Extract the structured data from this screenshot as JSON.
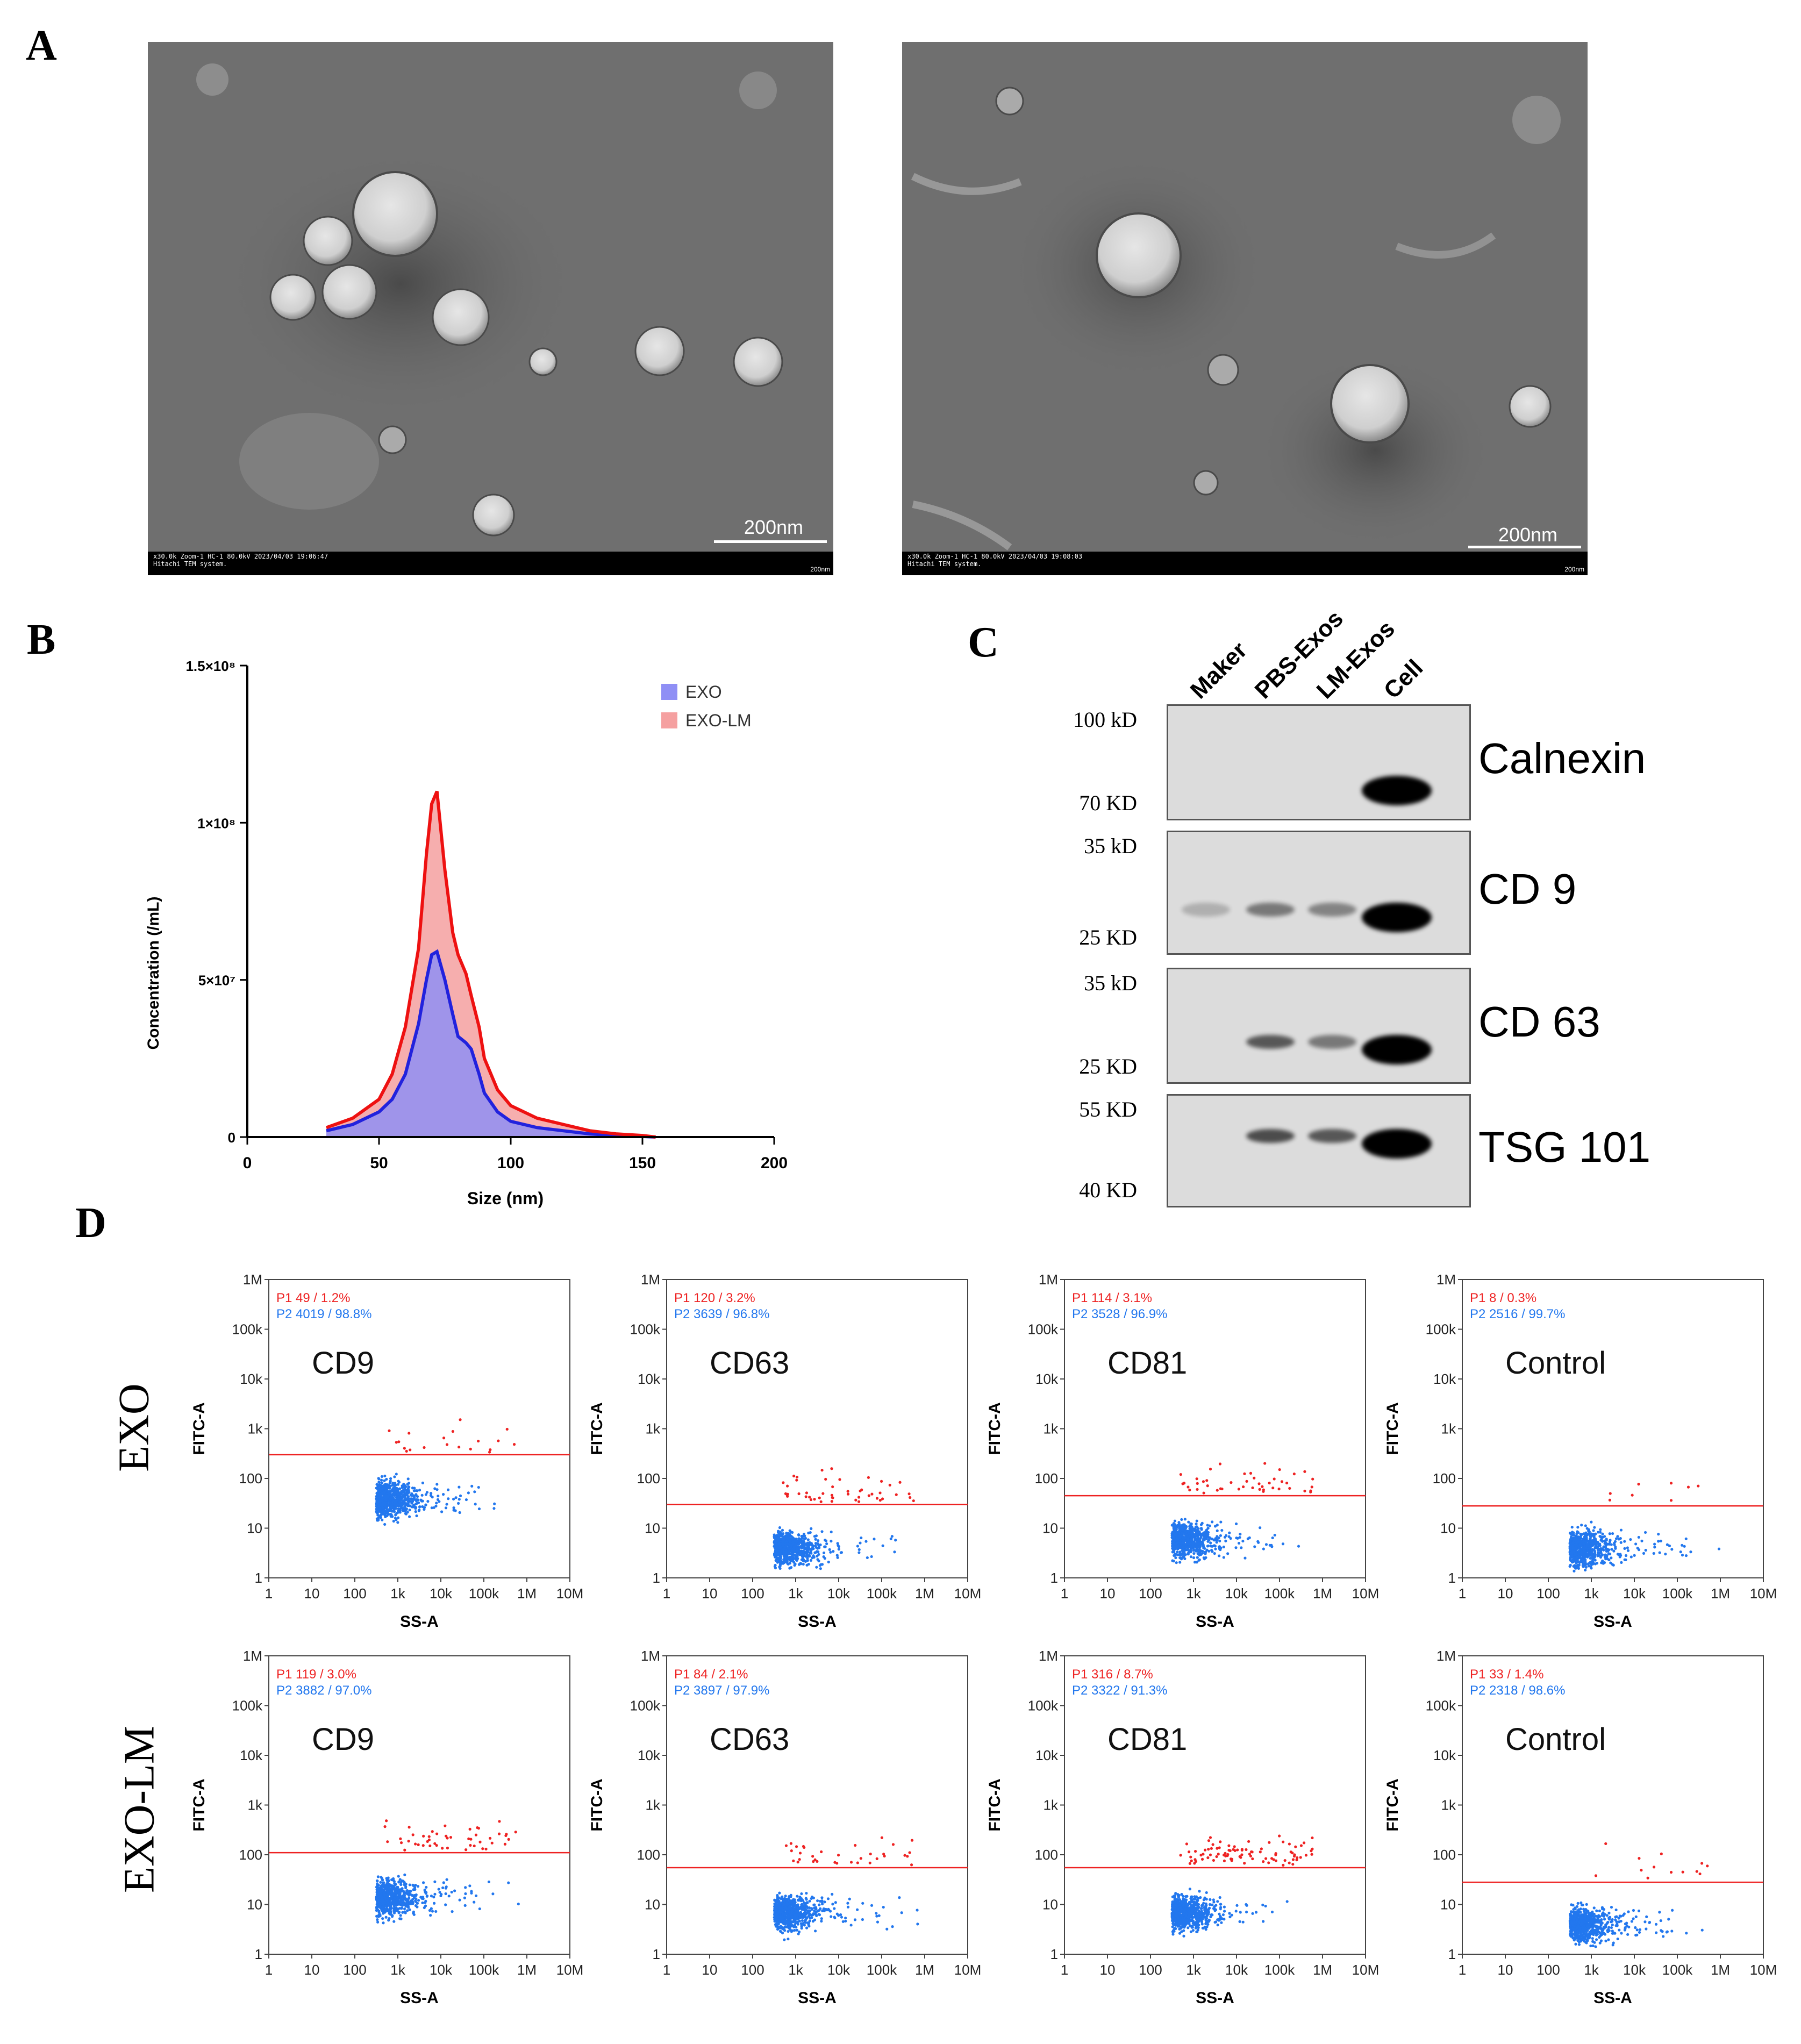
{
  "panel_labels": {
    "a": "A",
    "b": "B",
    "c": "C",
    "d": "D"
  },
  "tem": {
    "images": [
      {
        "scale_label": "200nm",
        "meta_line1": "x30.0k Zoom-1 HC-1 80.0kV 2023/04/03 19:06:47",
        "meta_line2": "Hitachi TEM system.",
        "scale_text": "200nm"
      },
      {
        "scale_label": "200nm",
        "meta_line1": "x30.0k Zoom-1 HC-1 80.0kV 2023/04/03 19:08:03",
        "meta_line2": "Hitachi TEM system.",
        "scale_text": "200nm"
      }
    ]
  },
  "chart_data": {
    "type": "area",
    "x": [
      30,
      40,
      50,
      55,
      60,
      65,
      68,
      70,
      72,
      75,
      78,
      80,
      83,
      85,
      88,
      90,
      95,
      100,
      110,
      120,
      130,
      140,
      150,
      155
    ],
    "series": [
      {
        "name": "EXO",
        "values": [
          2000000.0,
          4000000.0,
          8000000.0,
          12000000.0,
          20000000.0,
          36000000.0,
          50000000.0,
          58000000.0,
          59000000.0,
          50000000.0,
          39000000.0,
          32000000.0,
          30000000.0,
          28000000.0,
          20000000.0,
          14000000.0,
          8000000.0,
          5000000.0,
          3000000.0,
          2000000.0,
          1000000.0,
          500000.0,
          200000.0,
          0
        ]
      },
      {
        "name": "EXO-LM",
        "values": [
          3000000.0,
          6000000.0,
          12000000.0,
          20000000.0,
          35000000.0,
          60000000.0,
          90000000.0,
          106000000.0,
          110000000.0,
          85000000.0,
          65000000.0,
          58000000.0,
          52000000.0,
          45000000.0,
          35000000.0,
          25000000.0,
          15000000.0,
          10000000.0,
          6000000.0,
          4000000.0,
          2000000.0,
          1000000.0,
          500000.0,
          0
        ]
      }
    ],
    "xlabel": "Size (nm)",
    "ylabel": "Concentration (/mL)",
    "xlim": [
      0,
      200
    ],
    "ylim": [
      0,
      150000000
    ],
    "xticks": [
      "0",
      "50",
      "100",
      "150",
      "200"
    ],
    "yticks": [
      "0",
      "5×10⁷",
      "1×10⁸",
      "1.5×10⁸"
    ],
    "legend": [
      "EXO",
      "EXO-LM"
    ],
    "legend_position": "top-right",
    "colors": {
      "EXO": "#2222dd",
      "EXO-LM": "#ee1111",
      "EXO_fill": "#8f8ff5",
      "EXO-LM_fill": "#f5a0a0"
    }
  },
  "western": {
    "lanes": [
      "Maker",
      "PBS-Exos",
      "LM-Exos",
      "Cell"
    ],
    "blots": [
      {
        "protein": "Calnexin",
        "mw_top": "100 kD",
        "mw_bottom": "70 KD",
        "band_intensity": [
          0,
          0,
          0,
          1.0
        ]
      },
      {
        "protein": "CD 9",
        "mw_top": "35 kD",
        "mw_bottom": "25 KD",
        "band_intensity": [
          0.2,
          0.45,
          0.4,
          1.0
        ]
      },
      {
        "protein": "CD 63",
        "mw_top": "35 kD",
        "mw_bottom": "25 KD",
        "band_intensity": [
          0,
          0.6,
          0.45,
          1.0
        ]
      },
      {
        "protein": "TSG 101",
        "mw_top": "55 KD",
        "mw_bottom": "40 KD",
        "band_intensity": [
          0,
          0.65,
          0.6,
          1.0
        ]
      }
    ]
  },
  "flow": {
    "row_labels": [
      "EXO",
      "EXO-LM"
    ],
    "x_axis_label": "SS-A",
    "y_axis_label": "FITC-A",
    "x_ticks": [
      "1",
      "10",
      "100",
      "1k",
      "10k",
      "100k",
      "1M",
      "10M"
    ],
    "y_ticks": [
      "1",
      "10",
      "100",
      "1k",
      "10k",
      "100k",
      "1M"
    ],
    "colors": {
      "p1": "#ee2222",
      "p2": "#2277ee",
      "gate": "#ee2222"
    },
    "plots": [
      {
        "title": "CD9",
        "p1": "P1  49 / 1.2%",
        "p2": "P2  4019 / 98.8%",
        "gate_level": 300
      },
      {
        "title": "CD63",
        "p1": "P1  120 / 3.2%",
        "p2": "P2  3639 / 96.8%",
        "gate_level": 30
      },
      {
        "title": "CD81",
        "p1": "P1  114 / 3.1%",
        "p2": "P2  3528 / 96.9%",
        "gate_level": 45
      },
      {
        "title": "Control",
        "p1": "P1  8 / 0.3%",
        "p2": "P2  2516 / 99.7%",
        "gate_level": 28
      },
      {
        "title": "CD9",
        "p1": "P1  119 / 3.0%",
        "p2": "P2  3882 / 97.0%",
        "gate_level": 110
      },
      {
        "title": "CD63",
        "p1": "P1  84 / 2.1%",
        "p2": "P2  3897 / 97.9%",
        "gate_level": 55
      },
      {
        "title": "CD81",
        "p1": "P1  316 / 8.7%",
        "p2": "P2  3322 / 91.3%",
        "gate_level": 55
      },
      {
        "title": "Control",
        "p1": "P1  33 / 1.4%",
        "p2": "P2  2318 / 98.6%",
        "gate_level": 28
      }
    ]
  }
}
